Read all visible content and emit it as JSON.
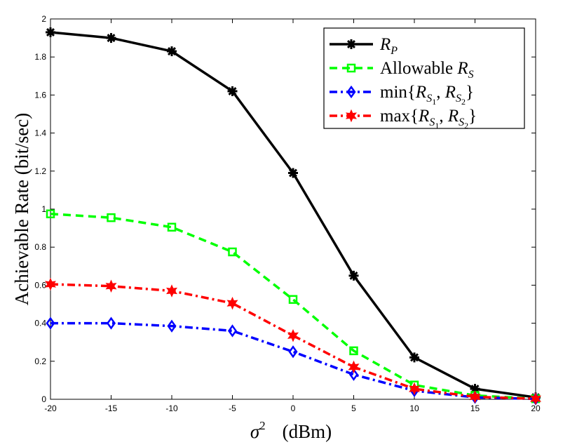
{
  "chart_data": {
    "type": "line",
    "title": "",
    "xlabel": "σ² (dBm)",
    "xlabel_parts": {
      "symbol": "σ",
      "superscript": "2",
      "unit": "(dBm)"
    },
    "ylabel": "Achievable Rate (bit/sec)",
    "xlim": [
      -20,
      20
    ],
    "ylim": [
      0,
      2
    ],
    "x_ticks": [
      -20,
      -15,
      -10,
      -5,
      0,
      5,
      10,
      15,
      20
    ],
    "y_ticks": [
      0,
      0.2,
      0.4,
      0.6,
      0.8,
      1,
      1.2,
      1.4,
      1.6,
      1.8,
      2
    ],
    "x_tick_labels": [
      "-20",
      "-15",
      "-10",
      "-5",
      "0",
      "5",
      "10",
      "15",
      "20"
    ],
    "y_tick_labels": [
      "0",
      "0.2",
      "0.4",
      "0.6",
      "0.8",
      "1",
      "1.2",
      "1.4",
      "1.6",
      "1.8",
      "2"
    ],
    "grid": false,
    "legend_position": "top-right",
    "x": [
      -20,
      -15,
      -10,
      -5,
      0,
      5,
      10,
      15,
      20
    ],
    "series": [
      {
        "name": "R_P",
        "legend": {
          "prefix": "",
          "main": "R",
          "sub": "P",
          "sub2": "",
          "main2": "",
          "sub3": "",
          "sub4": "",
          "suffix": ""
        },
        "color": "#000000",
        "dash": "solid",
        "marker": "asterisk",
        "values": [
          1.93,
          1.9,
          1.83,
          1.62,
          1.19,
          0.65,
          0.22,
          0.055,
          0.01
        ]
      },
      {
        "name": "Allowable R_S",
        "legend": {
          "prefix": "Allowable ",
          "main": "R",
          "sub": "S",
          "sub2": "",
          "main2": "",
          "sub3": "",
          "sub4": "",
          "suffix": ""
        },
        "color": "#00ff00",
        "dash": "dashed",
        "marker": "square",
        "values": [
          0.975,
          0.955,
          0.905,
          0.775,
          0.525,
          0.255,
          0.075,
          0.02,
          0.003
        ]
      },
      {
        "name": "min{R_S1, R_S2}",
        "legend": {
          "prefix": "min{",
          "main": "R",
          "sub": "S",
          "sub2": "1",
          "main2": "R",
          "sub3": "S",
          "sub4": "2",
          "suffix": "}"
        },
        "color": "#0000ff",
        "dash": "dashdot",
        "marker": "diamond",
        "values": [
          0.4,
          0.4,
          0.385,
          0.36,
          0.25,
          0.13,
          0.045,
          0.01,
          0.002
        ]
      },
      {
        "name": "max{R_S1, R_S2}",
        "legend": {
          "prefix": "max{",
          "main": "R",
          "sub": "S",
          "sub2": "1",
          "main2": "R",
          "sub3": "S",
          "sub4": "2",
          "suffix": "}"
        },
        "color": "#ff0000",
        "dash": "dashdot",
        "marker": "hexagram",
        "values": [
          0.605,
          0.595,
          0.57,
          0.505,
          0.335,
          0.17,
          0.055,
          0.013,
          0.003
        ]
      }
    ]
  }
}
